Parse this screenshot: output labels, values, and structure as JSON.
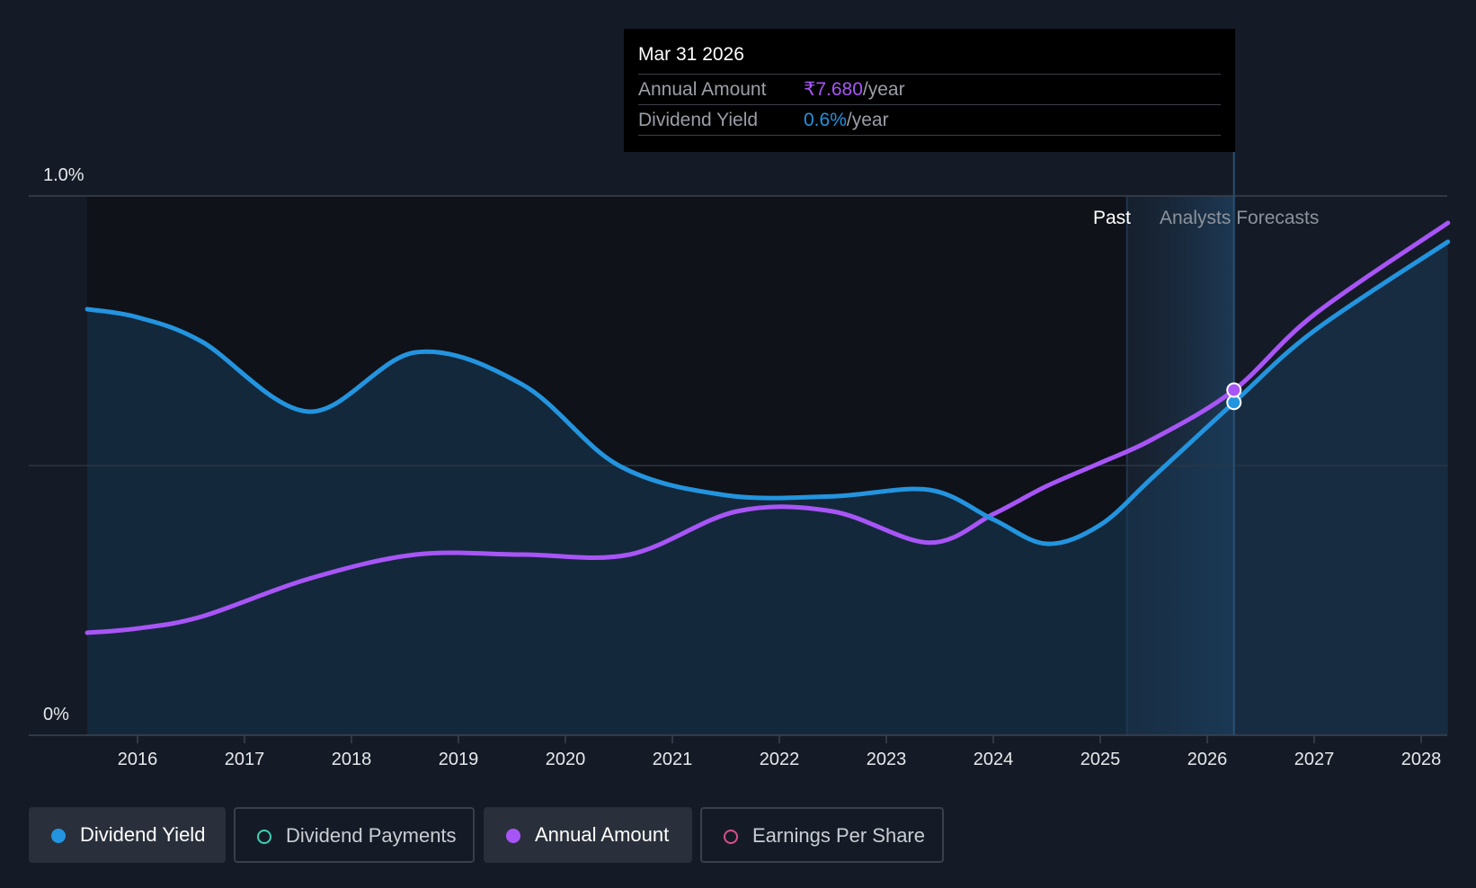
{
  "tooltip": {
    "date": "Mar 31 2026",
    "annual_amount_label": "Annual Amount",
    "annual_amount_value": "₹7.680",
    "annual_amount_unit": "/year",
    "dividend_yield_label": "Dividend Yield",
    "dividend_yield_value": "0.6%",
    "dividend_yield_unit": "/year"
  },
  "legend": [
    {
      "label": "Dividend Yield",
      "color": "#2394df",
      "active": true,
      "marker": "filled"
    },
    {
      "label": "Dividend Payments",
      "color": "#3fd0b6",
      "active": false,
      "marker": "hollow"
    },
    {
      "label": "Annual Amount",
      "color": "#a855f7",
      "active": true,
      "marker": "filled"
    },
    {
      "label": "Earnings Per Share",
      "color": "#d94f8c",
      "active": false,
      "marker": "hollow"
    }
  ],
  "chart_data": {
    "type": "line",
    "title": "",
    "xlabel": "",
    "ylabel": "",
    "y_tick_labels": [
      "1.0%",
      "0%"
    ],
    "ylim": [
      0,
      1.0
    ],
    "xlim": [
      2015.5,
      2028.25
    ],
    "x_ticks": [
      2016,
      2017,
      2018,
      2019,
      2020,
      2021,
      2022,
      2023,
      2024,
      2025,
      2026,
      2027,
      2028
    ],
    "past_label": "Past",
    "forecast_label": "Analysts Forecasts",
    "forecast_start": 2025.25,
    "highlight_x": 2026.25,
    "grid": true,
    "legend_placement": "bottom-left",
    "series": [
      {
        "name": "Dividend Yield",
        "color": "#2394df",
        "points": [
          [
            2015.53,
            0.79
          ],
          [
            2016.0,
            0.775
          ],
          [
            2016.6,
            0.73
          ],
          [
            2017.6,
            0.6
          ],
          [
            2018.6,
            0.71
          ],
          [
            2019.6,
            0.65
          ],
          [
            2020.5,
            0.5
          ],
          [
            2021.5,
            0.445
          ],
          [
            2022.5,
            0.443
          ],
          [
            2023.4,
            0.455
          ],
          [
            2024.0,
            0.4
          ],
          [
            2024.5,
            0.355
          ],
          [
            2025.0,
            0.39
          ],
          [
            2025.5,
            0.48
          ],
          [
            2026.25,
            0.617
          ],
          [
            2027.0,
            0.75
          ],
          [
            2028.25,
            0.915
          ]
        ],
        "marker": {
          "x": 2026.25,
          "y": 0.617
        }
      },
      {
        "name": "Annual Amount",
        "color": "#a855f7",
        "points": [
          [
            2015.53,
            0.19
          ],
          [
            2016.0,
            0.198
          ],
          [
            2016.6,
            0.22
          ],
          [
            2017.6,
            0.29
          ],
          [
            2018.6,
            0.335
          ],
          [
            2019.6,
            0.335
          ],
          [
            2020.6,
            0.335
          ],
          [
            2021.6,
            0.415
          ],
          [
            2022.5,
            0.415
          ],
          [
            2023.4,
            0.357
          ],
          [
            2024.0,
            0.41
          ],
          [
            2024.5,
            0.462
          ],
          [
            2025.0,
            0.505
          ],
          [
            2025.5,
            0.55
          ],
          [
            2026.25,
            0.64
          ],
          [
            2027.0,
            0.78
          ],
          [
            2028.25,
            0.95
          ]
        ],
        "marker": {
          "x": 2026.25,
          "y": 0.64
        }
      }
    ]
  }
}
